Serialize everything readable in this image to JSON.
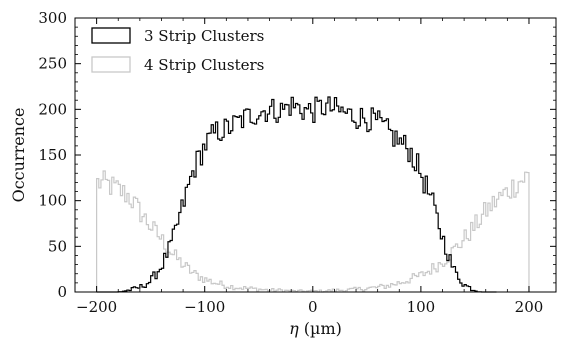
{
  "chart_data": {
    "type": "line",
    "style": "step-histogram",
    "title": "",
    "xlabel_symbol": "η",
    "xlabel_unit": "(µm)",
    "ylabel": "Occurrence",
    "xlim": [
      -220,
      225
    ],
    "ylim": [
      0,
      300
    ],
    "xticks": [
      -200,
      -100,
      0,
      100,
      200
    ],
    "yticks": [
      0,
      50,
      100,
      150,
      200,
      250,
      300
    ],
    "grid": false,
    "legend_position": "top-left",
    "bin_width": 2,
    "series": [
      {
        "name": "3 Strip Clusters",
        "color": "#000000",
        "x": [
          -200,
          -190,
          -180,
          -170,
          -160,
          -150,
          -140,
          -130,
          -120,
          -110,
          -100,
          -90,
          -80,
          -70,
          -60,
          -50,
          -40,
          -30,
          -20,
          -10,
          0,
          10,
          20,
          30,
          40,
          50,
          60,
          70,
          80,
          90,
          100,
          110,
          120,
          130,
          140,
          150,
          160,
          170
        ],
        "values": [
          0,
          0,
          0,
          2,
          5,
          12,
          28,
          55,
          95,
          135,
          160,
          175,
          178,
          185,
          192,
          197,
          200,
          198,
          205,
          200,
          198,
          203,
          200,
          196,
          192,
          190,
          186,
          175,
          165,
          155,
          130,
          100,
          60,
          25,
          8,
          2,
          0,
          0
        ]
      },
      {
        "name": "4 Strip Clusters",
        "color": "#c8c8c8",
        "x": [
          -200,
          -190,
          -180,
          -170,
          -160,
          -150,
          -140,
          -130,
          -120,
          -110,
          -100,
          -90,
          -80,
          -70,
          -60,
          -50,
          -40,
          -30,
          -20,
          -10,
          0,
          10,
          20,
          30,
          40,
          50,
          60,
          70,
          80,
          90,
          100,
          110,
          120,
          130,
          140,
          150,
          160,
          170,
          180,
          190,
          200
        ],
        "values": [
          120,
          118,
          112,
          105,
          88,
          72,
          58,
          42,
          30,
          20,
          14,
          10,
          7,
          5,
          4,
          3,
          2,
          2,
          1,
          1,
          1,
          1,
          2,
          2,
          3,
          4,
          5,
          7,
          10,
          14,
          18,
          25,
          33,
          45,
          58,
          72,
          88,
          100,
          110,
          120,
          128
        ]
      }
    ]
  }
}
